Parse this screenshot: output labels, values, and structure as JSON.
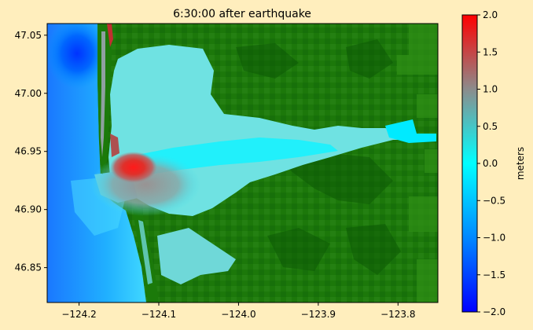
{
  "figure": {
    "background": "#ffeebd",
    "title": "6:30:00 after earthquake"
  },
  "colors": {
    "land": "#1e7a0a",
    "land_dark": "#0e5f06",
    "land_light": "#3a9a1a",
    "water_zero": "#00f0ff",
    "bay": "#6fe3e3",
    "ocean": "#20a8ff",
    "deep": "#0055ff",
    "crest": "#e0302a"
  },
  "chart_data": {
    "type": "heatmap",
    "title": "6:30:00 after earthquake",
    "xlabel": "",
    "ylabel": "",
    "xlim": [
      -124.24,
      -123.75
    ],
    "ylim": [
      46.82,
      47.06
    ],
    "xticks": [
      -124.2,
      -124.1,
      -124.0,
      -123.9,
      -123.8
    ],
    "xtick_labels": [
      "−124.2",
      "−124.1",
      "−124.0",
      "−123.9",
      "−123.8"
    ],
    "yticks": [
      46.85,
      46.9,
      46.95,
      47.0,
      47.05
    ],
    "ytick_labels": [
      "46.85",
      "46.90",
      "46.95",
      "47.00",
      "47.05"
    ],
    "grid": false,
    "colorbar": {
      "label": "meters",
      "vmin": -2.0,
      "vmax": 2.0,
      "ticks": [
        2.0,
        1.5,
        1.0,
        0.5,
        0.0,
        -0.5,
        -1.0,
        -1.5,
        -2.0
      ],
      "tick_labels": [
        "2.0",
        "1.5",
        "1.0",
        "0.5",
        "0.0",
        "−0.5",
        "−1.0",
        "−1.5",
        "−2.0"
      ],
      "colormap": [
        {
          "value": -2.0,
          "color": "#0000ff"
        },
        {
          "value": -1.0,
          "color": "#0088ff"
        },
        {
          "value": 0.0,
          "color": "#00ffff"
        },
        {
          "value": 1.0,
          "color": "#8c8c8c"
        },
        {
          "value": 2.0,
          "color": "#ff0000"
        }
      ]
    }
  }
}
